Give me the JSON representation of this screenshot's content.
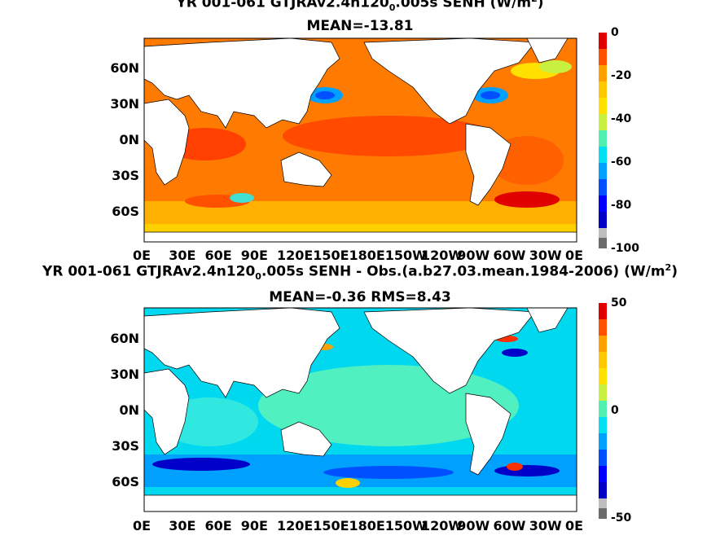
{
  "panels": [
    {
      "title_main": "YR 001-061 GTJRAv2.4n120",
      "title_sub": "0",
      "title_tail": ".005s  SENH (W/m",
      "title_sup": "2",
      "title_end": ")",
      "stats": "MEAN=-13.81",
      "lat_ticks": [
        "60N",
        "30N",
        "0N",
        "30S",
        "60S"
      ],
      "lon_ticks": [
        "0E",
        "30E",
        "60E",
        "90E",
        "120E",
        "150E",
        "180E",
        "150W",
        "120W",
        "90W",
        "60W",
        "30W",
        "0E"
      ],
      "colorbar_ticks": [
        "0",
        "-20",
        "-40",
        "-60",
        "-80",
        "-100"
      ]
    },
    {
      "title_main": "YR 001-061 GTJRAv2.4n120",
      "title_sub": "0",
      "title_tail": ".005s SENH - Obs.(a.b27.03.mean.1984-2006) (W/m",
      "title_sup": "2",
      "title_end": ")",
      "stats": "MEAN=-0.36 RMS=8.43",
      "lat_ticks": [
        "60N",
        "30N",
        "0N",
        "30S",
        "60S"
      ],
      "lon_ticks": [
        "0E",
        "30E",
        "60E",
        "90E",
        "120E",
        "150E",
        "180E",
        "150W",
        "120W",
        "90W",
        "60W",
        "30W",
        "0E"
      ],
      "colorbar_ticks": [
        "50",
        "0",
        "-50"
      ]
    }
  ],
  "chart_data": [
    {
      "type": "heatmap",
      "title": "YR 001-061 GTJRAv2.4n120 0.005s SENH (W/m2)",
      "subtitle": "MEAN=-13.81",
      "field": "sensible heat flux",
      "mean": -13.81,
      "lat_range": [
        -78,
        90
      ],
      "lon_range": [
        0,
        360
      ],
      "color_range": [
        -100,
        0
      ],
      "colorbar_ticks": [
        0,
        -20,
        -40,
        -60,
        -80,
        -100
      ],
      "colors": [
        "#6b6b6b",
        "#bdbdbd",
        "#0000c8",
        "#0050ff",
        "#00a0ff",
        "#00e0f0",
        "#50f0b0",
        "#c8f040",
        "#ffe000",
        "#ffa000",
        "#ff5000",
        "#e00000"
      ]
    },
    {
      "type": "heatmap",
      "title": "YR 001-061 GTJRAv2.4n120 0.005s SENH - Obs.(a.b27.03.mean.1984-2006) (W/m2)",
      "subtitle": "MEAN=-0.36 RMS=8.43",
      "field": "sensible heat flux difference",
      "mean": -0.36,
      "rms": 8.43,
      "lat_range": [
        -78,
        90
      ],
      "lon_range": [
        0,
        360
      ],
      "color_range": [
        -50,
        50
      ],
      "colorbar_ticks": [
        50,
        0,
        -50
      ],
      "colors": [
        "#6b6b6b",
        "#bdbdbd",
        "#0000c8",
        "#0050ff",
        "#00a0ff",
        "#00e0f0",
        "#50f0b0",
        "#c8f040",
        "#ffe000",
        "#ffa000",
        "#ff5000",
        "#e00000"
      ]
    }
  ]
}
